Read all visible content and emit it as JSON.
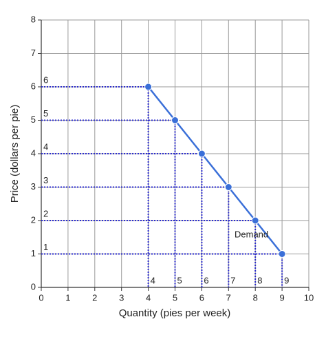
{
  "chart_data": {
    "type": "line",
    "xlabel": "Quantity (pies per week)",
    "ylabel": "Price (dollars per pie)",
    "annotation": "Demand",
    "series": [
      {
        "name": "Demand",
        "color": "#3a6fd8",
        "x": [
          4,
          5,
          6,
          7,
          8,
          9
        ],
        "values": [
          6,
          5,
          4,
          3,
          2,
          1
        ]
      }
    ],
    "guide_color": "#2b2bd0",
    "xlim": [
      0,
      10
    ],
    "xticks": [
      0,
      1,
      2,
      3,
      4,
      5,
      6,
      7,
      8,
      9,
      10
    ],
    "ylim": [
      0,
      8
    ],
    "yticks": [
      0,
      1,
      2,
      3,
      4,
      5,
      6,
      7,
      8
    ],
    "grid": true
  }
}
